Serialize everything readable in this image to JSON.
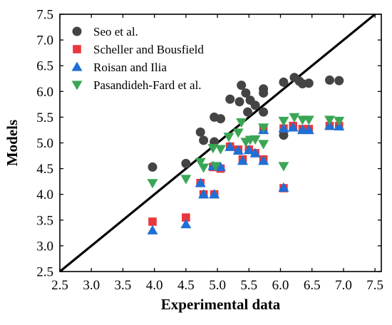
{
  "chart_data": {
    "type": "scatter",
    "title": "",
    "xlabel": "Experimental data",
    "ylabel": "Models",
    "xlim": [
      2.5,
      7.6
    ],
    "ylim": [
      2.5,
      7.5
    ],
    "xticks": [
      "2.5",
      "3.0",
      "3.5",
      "4.0",
      "4.5",
      "5.0",
      "5.5",
      "6.0",
      "6.5",
      "7.0",
      "7.5"
    ],
    "yticks": [
      "2.5",
      "3.0",
      "3.5",
      "4.0",
      "4.5",
      "5.0",
      "5.5",
      "6.0",
      "6.5",
      "7.0",
      "7.5"
    ],
    "grid": false,
    "legend_position": "top-left",
    "reference_line": {
      "x": [
        2.5,
        7.6
      ],
      "y": [
        2.5,
        7.6
      ],
      "color": "#000000"
    },
    "series": [
      {
        "name": "Seo et al.",
        "marker": "circle",
        "color": "#444444",
        "points": [
          [
            3.97,
            4.53
          ],
          [
            4.5,
            4.6
          ],
          [
            4.73,
            5.21
          ],
          [
            4.78,
            5.05
          ],
          [
            4.95,
            5.5
          ],
          [
            4.95,
            5.02
          ],
          [
            5.05,
            5.47
          ],
          [
            5.2,
            5.85
          ],
          [
            5.35,
            5.8
          ],
          [
            5.38,
            6.12
          ],
          [
            5.45,
            5.97
          ],
          [
            5.48,
            5.6
          ],
          [
            5.52,
            5.83
          ],
          [
            5.6,
            5.73
          ],
          [
            5.73,
            6.05
          ],
          [
            5.73,
            5.97
          ],
          [
            5.73,
            5.6
          ],
          [
            6.05,
            6.18
          ],
          [
            6.05,
            5.15
          ],
          [
            6.22,
            6.27
          ],
          [
            6.3,
            6.2
          ],
          [
            6.35,
            6.15
          ],
          [
            6.45,
            6.16
          ],
          [
            6.78,
            6.22
          ],
          [
            6.93,
            6.21
          ]
        ]
      },
      {
        "name": "Scheller and Bousfield",
        "marker": "square",
        "color": "#e8383d",
        "points": [
          [
            3.97,
            3.47
          ],
          [
            4.5,
            3.55
          ],
          [
            4.73,
            4.22
          ],
          [
            4.78,
            4.0
          ],
          [
            4.93,
            4.53
          ],
          [
            4.95,
            4.0
          ],
          [
            5.05,
            4.5
          ],
          [
            5.2,
            4.93
          ],
          [
            5.33,
            4.87
          ],
          [
            5.4,
            4.68
          ],
          [
            5.5,
            4.87
          ],
          [
            5.6,
            4.8
          ],
          [
            5.73,
            4.68
          ],
          [
            5.73,
            5.27
          ],
          [
            6.05,
            4.12
          ],
          [
            6.05,
            5.28
          ],
          [
            6.2,
            5.33
          ],
          [
            6.35,
            5.27
          ],
          [
            6.45,
            5.27
          ],
          [
            6.78,
            5.33
          ],
          [
            6.93,
            5.33
          ]
        ]
      },
      {
        "name": "Roisan and Ilia",
        "marker": "triangle-up",
        "color": "#1f6fd6",
        "points": [
          [
            3.97,
            3.3
          ],
          [
            4.5,
            3.42
          ],
          [
            4.73,
            4.22
          ],
          [
            4.78,
            4.0
          ],
          [
            4.93,
            4.55
          ],
          [
            4.95,
            4.0
          ],
          [
            5.05,
            4.53
          ],
          [
            5.2,
            4.92
          ],
          [
            5.33,
            4.85
          ],
          [
            5.4,
            4.65
          ],
          [
            5.5,
            4.86
          ],
          [
            5.6,
            4.8
          ],
          [
            5.73,
            4.65
          ],
          [
            5.73,
            5.25
          ],
          [
            6.05,
            4.13
          ],
          [
            6.05,
            5.28
          ],
          [
            6.2,
            5.3
          ],
          [
            6.35,
            5.25
          ],
          [
            6.45,
            5.25
          ],
          [
            6.78,
            5.33
          ],
          [
            6.93,
            5.32
          ]
        ]
      },
      {
        "name": "Pasandideh-Fard et al.",
        "marker": "triangle-down",
        "color": "#3aa655",
        "points": [
          [
            3.97,
            4.22
          ],
          [
            4.5,
            4.3
          ],
          [
            4.73,
            4.63
          ],
          [
            4.78,
            4.52
          ],
          [
            4.93,
            4.9
          ],
          [
            4.97,
            4.55
          ],
          [
            5.05,
            4.88
          ],
          [
            5.18,
            5.12
          ],
          [
            5.33,
            5.2
          ],
          [
            5.38,
            5.4
          ],
          [
            5.45,
            5.02
          ],
          [
            5.52,
            5.06
          ],
          [
            5.6,
            5.07
          ],
          [
            5.73,
            5.3
          ],
          [
            5.73,
            4.98
          ],
          [
            6.05,
            4.55
          ],
          [
            6.05,
            5.43
          ],
          [
            6.22,
            5.5
          ],
          [
            6.35,
            5.45
          ],
          [
            6.45,
            5.45
          ],
          [
            6.78,
            5.45
          ],
          [
            6.93,
            5.43
          ]
        ]
      }
    ]
  }
}
